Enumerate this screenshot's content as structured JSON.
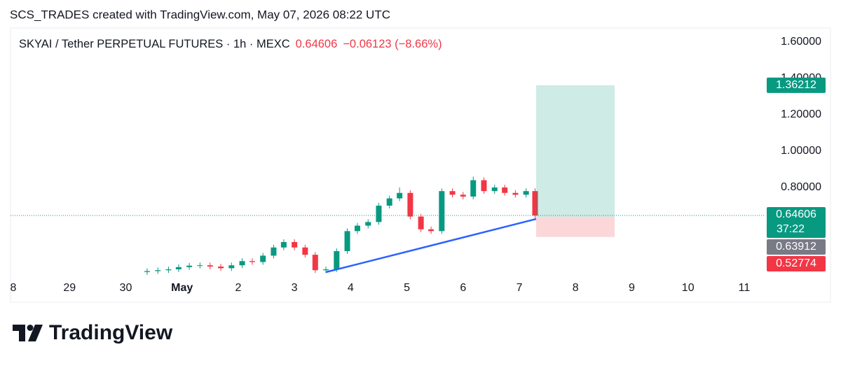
{
  "header": {
    "text": "SCS_TRADES created with TradingView.com, May 07, 2026 08:22 UTC"
  },
  "chart_data": {
    "type": "candlestick",
    "title": "SKYAI / Tether PERPETUAL FUTURES · 1h · MEXC",
    "last_price": 0.64606,
    "change": "−0.06123 (−8.66%)",
    "countdown": "37:22",
    "up_color": "#089981",
    "down_color": "#f23645",
    "x": [
      2.38,
      2.57,
      2.76,
      2.94,
      3.13,
      3.32,
      3.5,
      3.69,
      3.88,
      4.07,
      4.25,
      4.44,
      4.63,
      4.81,
      5.0,
      5.19,
      5.37,
      5.56,
      5.75,
      5.94,
      6.12,
      6.31,
      6.5,
      6.69,
      6.87,
      7.06,
      7.25,
      7.43,
      7.62,
      7.81,
      8.0,
      8.18,
      8.37,
      8.56,
      8.74,
      8.93,
      9.12,
      9.28
    ],
    "open": [
      0.335,
      0.34,
      0.345,
      0.35,
      0.362,
      0.37,
      0.372,
      0.365,
      0.356,
      0.372,
      0.395,
      0.39,
      0.425,
      0.47,
      0.5,
      0.47,
      0.43,
      0.345,
      0.35,
      0.45,
      0.56,
      0.59,
      0.61,
      0.7,
      0.74,
      0.77,
      0.64,
      0.57,
      0.56,
      0.78,
      0.76,
      0.75,
      0.84,
      0.78,
      0.8,
      0.77,
      0.76,
      0.78
    ],
    "high": [
      0.355,
      0.36,
      0.365,
      0.377,
      0.385,
      0.387,
      0.387,
      0.38,
      0.387,
      0.41,
      0.41,
      0.44,
      0.485,
      0.515,
      0.515,
      0.485,
      0.445,
      0.365,
      0.465,
      0.575,
      0.605,
      0.625,
      0.715,
      0.755,
      0.8,
      0.785,
      0.655,
      0.585,
      0.795,
      0.795,
      0.775,
      0.86,
      0.855,
      0.815,
      0.815,
      0.785,
      0.795,
      0.795
    ],
    "low": [
      0.32,
      0.325,
      0.33,
      0.335,
      0.347,
      0.355,
      0.35,
      0.341,
      0.341,
      0.357,
      0.375,
      0.375,
      0.41,
      0.455,
      0.455,
      0.415,
      0.33,
      0.33,
      0.335,
      0.435,
      0.545,
      0.575,
      0.595,
      0.685,
      0.725,
      0.625,
      0.555,
      0.545,
      0.545,
      0.745,
      0.735,
      0.735,
      0.765,
      0.765,
      0.755,
      0.745,
      0.745,
      0.631
    ],
    "close": [
      0.34,
      0.345,
      0.35,
      0.362,
      0.37,
      0.372,
      0.365,
      0.356,
      0.372,
      0.395,
      0.39,
      0.425,
      0.47,
      0.5,
      0.47,
      0.43,
      0.345,
      0.35,
      0.45,
      0.56,
      0.59,
      0.61,
      0.7,
      0.74,
      0.77,
      0.64,
      0.57,
      0.56,
      0.78,
      0.76,
      0.75,
      0.84,
      0.78,
      0.8,
      0.77,
      0.76,
      0.78,
      0.646
    ],
    "xlim": [
      -0.05,
      13.35
    ],
    "xticks": [
      {
        "value": 0,
        "label": "8"
      },
      {
        "value": 1,
        "label": "29"
      },
      {
        "value": 2,
        "label": "30"
      },
      {
        "value": 3,
        "label": "May"
      },
      {
        "value": 4,
        "label": "2"
      },
      {
        "value": 5,
        "label": "3"
      },
      {
        "value": 6,
        "label": "4"
      },
      {
        "value": 7,
        "label": "5"
      },
      {
        "value": 8,
        "label": "6"
      },
      {
        "value": 9,
        "label": "7"
      },
      {
        "value": 10,
        "label": "8"
      },
      {
        "value": 11,
        "label": "9"
      },
      {
        "value": 12,
        "label": "10"
      },
      {
        "value": 13,
        "label": "11"
      }
    ],
    "ylim": [
      0.292,
      1.677
    ],
    "yticks": [
      {
        "value": 1.6,
        "label": "1.60000"
      },
      {
        "value": 1.4,
        "label": "1.40000"
      },
      {
        "value": 1.2,
        "label": "1.20000"
      },
      {
        "value": 1.0,
        "label": "1.00000"
      },
      {
        "value": 0.8,
        "label": "0.80000"
      }
    ],
    "position": {
      "target": 1.36212,
      "entry": 0.63912,
      "stop": 0.52774
    }
  },
  "footer": {
    "brand": "TradingView"
  }
}
